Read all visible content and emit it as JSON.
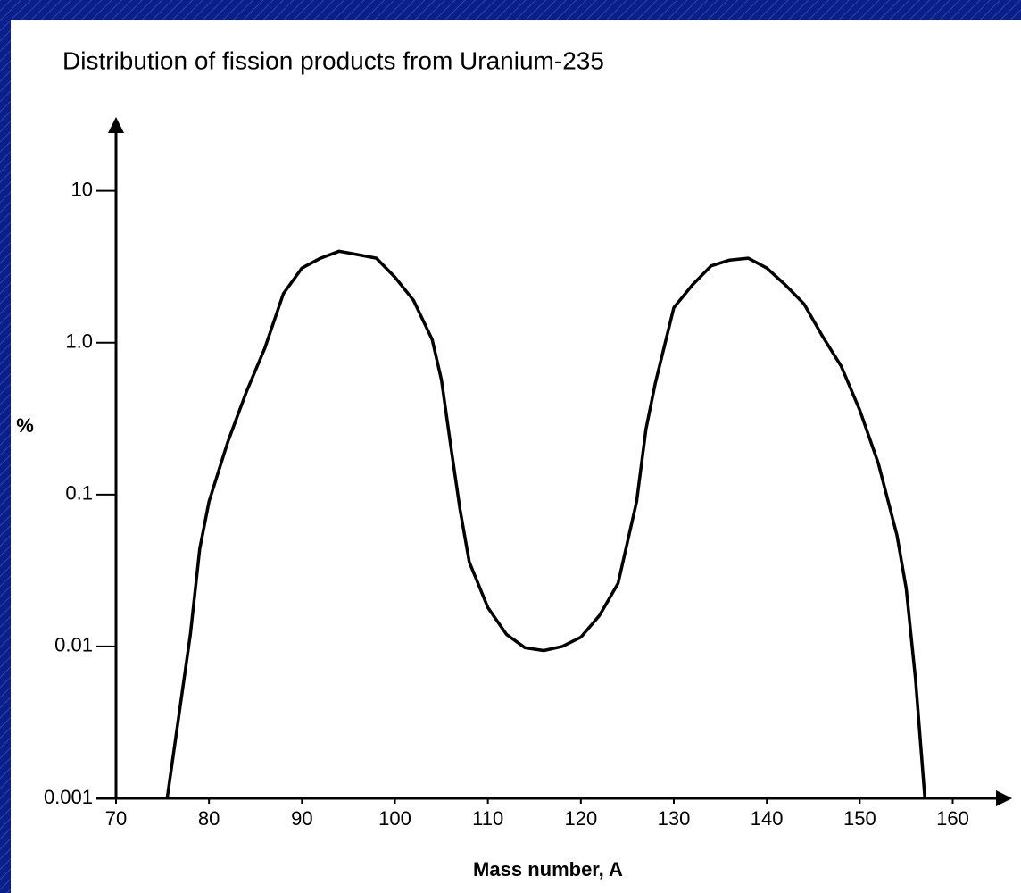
{
  "chart_data": {
    "type": "line",
    "title": "Distribution of fission products from Uranium-235",
    "x_label": "Mass number, A",
    "y_label": "%",
    "yscale": "log",
    "xlim": [
      70,
      166
    ],
    "ylim": [
      0.001,
      29
    ],
    "xticks": [
      70,
      80,
      90,
      100,
      110,
      120,
      130,
      140,
      150,
      160
    ],
    "yticks": [
      0.001,
      0.01,
      0.1,
      {
        "value": 1,
        "label": "1.0"
      },
      10
    ],
    "grid": false,
    "series": [
      {
        "color": "#000000",
        "x": [
          75.5,
          78,
          79,
          80,
          82,
          84,
          86,
          88,
          90,
          92,
          94,
          96,
          98,
          100,
          102,
          104,
          105,
          106,
          107,
          108,
          110,
          112,
          114,
          116,
          118,
          120,
          122,
          124,
          126,
          127,
          128,
          130,
          132,
          134,
          136,
          138,
          140,
          142,
          144,
          146,
          148,
          150,
          152,
          154,
          155,
          156,
          157
        ],
        "values": [
          0.001,
          0.012,
          0.044,
          0.09,
          0.22,
          0.47,
          0.92,
          2.1,
          3.1,
          3.6,
          4.0,
          3.8,
          3.6,
          2.7,
          1.9,
          1.05,
          0.57,
          0.21,
          0.08,
          0.036,
          0.018,
          0.012,
          0.0098,
          0.0094,
          0.01,
          0.0115,
          0.016,
          0.026,
          0.09,
          0.27,
          0.54,
          1.7,
          2.4,
          3.2,
          3.5,
          3.6,
          3.1,
          2.4,
          1.8,
          1.1,
          0.7,
          0.36,
          0.16,
          0.054,
          0.024,
          0.0061,
          0.001
        ]
      }
    ]
  }
}
